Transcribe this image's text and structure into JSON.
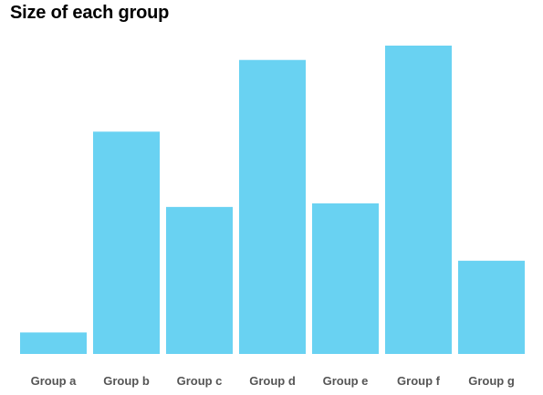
{
  "title": "Size of each group",
  "colors": {
    "bar": "#69d2f2",
    "tick_label": "#555555",
    "background": "#ffffff"
  },
  "chart_data": {
    "type": "bar",
    "title": "Size of each group",
    "xlabel": "",
    "ylabel": "",
    "categories": [
      "Group a",
      "Group b",
      "Group c",
      "Group d",
      "Group e",
      "Group f",
      "Group g"
    ],
    "values": [
      3,
      31,
      20.5,
      41,
      21,
      43,
      13
    ],
    "ylim": [
      0,
      43
    ],
    "grid": false,
    "legend": "none"
  }
}
